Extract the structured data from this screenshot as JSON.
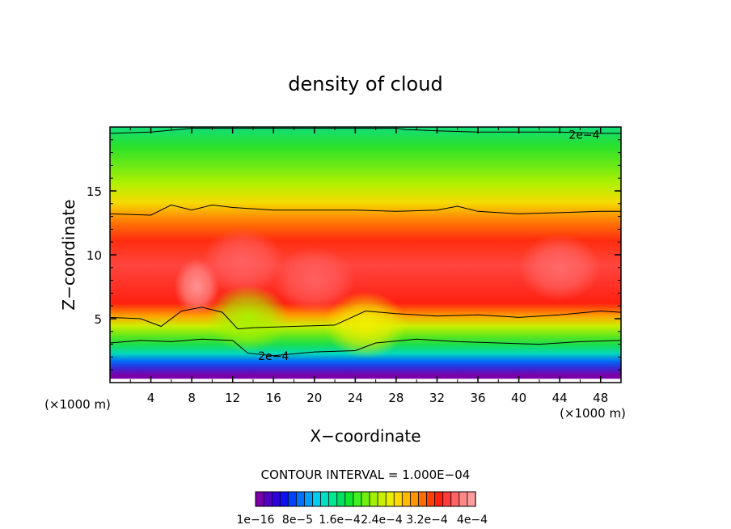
{
  "chart_data": {
    "type": "heatmap",
    "title": "density of cloud",
    "xlabel": "X−coordinate",
    "ylabel": "Z−coordinate",
    "x_unit_left": "(×1000 m)",
    "x_unit_right": "(×1000 m)",
    "xlim": [
      0,
      50
    ],
    "ylim": [
      0,
      20
    ],
    "x_ticks": [
      4,
      8,
      12,
      16,
      20,
      24,
      28,
      32,
      36,
      40,
      44,
      48
    ],
    "y_ticks": [
      5,
      10,
      15
    ],
    "contour_interval_label": "CONTOUR INTERVAL = 1.000E−04",
    "contour_labels": [
      {
        "text": "2e−4",
        "x": 46.4,
        "z": 19.4
      },
      {
        "text": "2e−4",
        "x": 16.0,
        "z": 2.1
      }
    ],
    "colorbar_labels": [
      "1e−16",
      "8e−5",
      "1.6e−4",
      "2.4e−4",
      "3.2e−4",
      "4e−4"
    ],
    "colorbar_colors": [
      "#7a00a8",
      "#5400c0",
      "#3000d8",
      "#1010f0",
      "#0040ff",
      "#0070ff",
      "#00a0ff",
      "#00ccf0",
      "#00e0c0",
      "#00e890",
      "#00e060",
      "#10e830",
      "#40f020",
      "#70f010",
      "#a0f000",
      "#c8f000",
      "#e8ee00",
      "#ffd800",
      "#ffb800",
      "#ff9400",
      "#ff6c00",
      "#ff4000",
      "#ff2010",
      "#ff3c3c",
      "#ff6464",
      "#ff8888",
      "#ff9c9c"
    ],
    "colormap_stops": [
      {
        "v": 0.0,
        "color": "#7a00a8"
      },
      {
        "v": 0.2,
        "color": "#0050ff"
      },
      {
        "v": 0.3,
        "color": "#00d8d0"
      },
      {
        "v": 0.45,
        "color": "#20e030"
      },
      {
        "v": 0.6,
        "color": "#a8f000"
      },
      {
        "v": 0.68,
        "color": "#f0ee00"
      },
      {
        "v": 0.76,
        "color": "#ffa000"
      },
      {
        "v": 0.86,
        "color": "#ff2010"
      },
      {
        "v": 0.93,
        "color": "#ff6060"
      },
      {
        "v": 1.0,
        "color": "#ff9c9c"
      }
    ],
    "vertical_profile": [
      {
        "z": 0.3,
        "v": 0.0
      },
      {
        "z": 0.9,
        "v": 0.12
      },
      {
        "z": 1.4,
        "v": 0.22
      },
      {
        "z": 2.0,
        "v": 0.32
      },
      {
        "z": 2.7,
        "v": 0.42
      },
      {
        "z": 3.4,
        "v": 0.52
      },
      {
        "z": 4.2,
        "v": 0.64
      },
      {
        "z": 5.0,
        "v": 0.76
      },
      {
        "z": 6.0,
        "v": 0.86
      },
      {
        "z": 9.0,
        "v": 0.9
      },
      {
        "z": 11.0,
        "v": 0.85
      },
      {
        "z": 12.5,
        "v": 0.79
      },
      {
        "z": 14.0,
        "v": 0.7
      },
      {
        "z": 15.5,
        "v": 0.61
      },
      {
        "z": 17.0,
        "v": 0.53
      },
      {
        "z": 18.5,
        "v": 0.46
      },
      {
        "z": 20.0,
        "v": 0.38
      }
    ],
    "maxima": [
      {
        "x": 8.5,
        "z": 7.5,
        "value": 0.99
      },
      {
        "x": 13.0,
        "z": 9.5,
        "value": 0.93
      },
      {
        "x": 20.0,
        "z": 8.0,
        "value": 0.93
      },
      {
        "x": 44.0,
        "z": 9.0,
        "value": 0.94
      }
    ],
    "minima": [
      {
        "x": 13.5,
        "z": 5.0,
        "value": 0.6
      },
      {
        "x": 25.0,
        "z": 4.5,
        "value": 0.68
      }
    ],
    "contours": [
      {
        "level": "2e−4",
        "points": [
          [
            0,
            3.1
          ],
          [
            3,
            3.3
          ],
          [
            6,
            3.2
          ],
          [
            9,
            3.4
          ],
          [
            12,
            3.3
          ],
          [
            13.5,
            2.3
          ],
          [
            16,
            2.1
          ],
          [
            20,
            2.4
          ],
          [
            24,
            2.5
          ],
          [
            26,
            3.1
          ],
          [
            30,
            3.4
          ],
          [
            34,
            3.2
          ],
          [
            38,
            3.1
          ],
          [
            42,
            3.0
          ],
          [
            46,
            3.2
          ],
          [
            50,
            3.3
          ]
        ]
      },
      {
        "level": "",
        "points": [
          [
            0,
            5.1
          ],
          [
            3,
            5.0
          ],
          [
            5,
            4.4
          ],
          [
            7,
            5.6
          ],
          [
            9,
            5.9
          ],
          [
            11,
            5.5
          ],
          [
            12.5,
            4.2
          ],
          [
            14,
            4.3
          ],
          [
            18,
            4.4
          ],
          [
            22,
            4.5
          ],
          [
            25,
            5.6
          ],
          [
            28,
            5.4
          ],
          [
            32,
            5.2
          ],
          [
            36,
            5.3
          ],
          [
            40,
            5.1
          ],
          [
            44,
            5.3
          ],
          [
            48,
            5.6
          ],
          [
            50,
            5.5
          ]
        ]
      },
      {
        "level": "",
        "points": [
          [
            0,
            13.2
          ],
          [
            4,
            13.1
          ],
          [
            6,
            13.9
          ],
          [
            8,
            13.5
          ],
          [
            10,
            13.9
          ],
          [
            12,
            13.7
          ],
          [
            16,
            13.5
          ],
          [
            20,
            13.5
          ],
          [
            24,
            13.5
          ],
          [
            28,
            13.4
          ],
          [
            32,
            13.5
          ],
          [
            34,
            13.8
          ],
          [
            36,
            13.4
          ],
          [
            40,
            13.2
          ],
          [
            44,
            13.3
          ],
          [
            48,
            13.4
          ],
          [
            50,
            13.4
          ]
        ]
      },
      {
        "level": "2e−4",
        "points": [
          [
            0,
            19.5
          ],
          [
            4,
            19.6
          ],
          [
            8,
            19.9
          ],
          [
            12,
            19.9
          ],
          [
            16,
            19.9
          ],
          [
            20,
            19.9
          ],
          [
            24,
            19.9
          ],
          [
            28,
            19.9
          ],
          [
            29,
            19.8
          ],
          [
            32,
            19.7
          ],
          [
            36,
            19.6
          ],
          [
            40,
            19.6
          ],
          [
            44,
            19.6
          ],
          [
            48,
            19.5
          ],
          [
            50,
            19.5
          ]
        ]
      }
    ]
  }
}
